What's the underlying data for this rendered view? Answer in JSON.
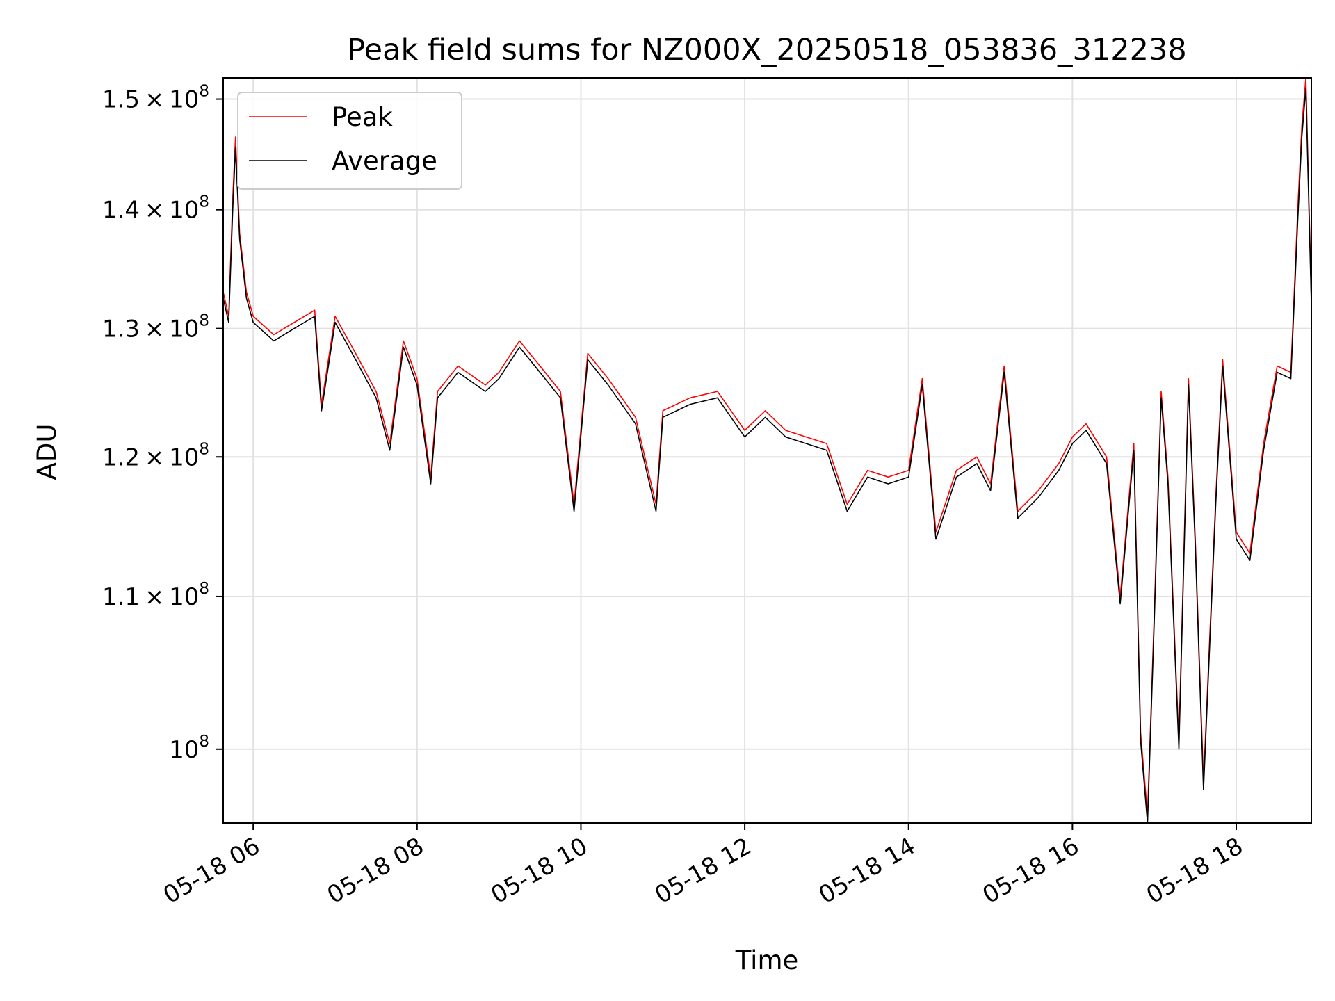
{
  "chart_data": {
    "type": "line",
    "title": "Peak field sums for NZ000X_20250518_053836_312238",
    "xlabel": "Time",
    "ylabel": "ADU",
    "x_unit": "hours (2025-05-18, local clock)",
    "xlim": [
      "2025-05-18 05:38",
      "2025-05-18 18:55"
    ],
    "ylim": [
      95500000,
      152000000
    ],
    "y_scale": "log",
    "grid": true,
    "legend_position": "top-left",
    "x_ticks": [
      {
        "value": "2025-05-18 06:00",
        "label": "05-18 06"
      },
      {
        "value": "2025-05-18 08:00",
        "label": "05-18 08"
      },
      {
        "value": "2025-05-18 10:00",
        "label": "05-18 10"
      },
      {
        "value": "2025-05-18 12:00",
        "label": "05-18 12"
      },
      {
        "value": "2025-05-18 14:00",
        "label": "05-18 14"
      },
      {
        "value": "2025-05-18 16:00",
        "label": "05-18 16"
      },
      {
        "value": "2025-05-18 18:00",
        "label": "05-18 18"
      }
    ],
    "y_ticks": [
      {
        "value": 100000000,
        "mantissa": "",
        "base": "10",
        "exp": "8"
      },
      {
        "value": 110000000,
        "mantissa": "1.1",
        "base": "10",
        "exp": "8"
      },
      {
        "value": 120000000,
        "mantissa": "1.2",
        "base": "10",
        "exp": "8"
      },
      {
        "value": 130000000,
        "mantissa": "1.3",
        "base": "10",
        "exp": "8"
      },
      {
        "value": 140000000,
        "mantissa": "1.4",
        "base": "10",
        "exp": "8"
      },
      {
        "value": 150000000,
        "mantissa": "1.5",
        "base": "10",
        "exp": "8"
      }
    ],
    "series": [
      {
        "name": "Peak",
        "color": "#ff0000",
        "points": [
          [
            "2025-05-18 05:38",
            133000000
          ],
          [
            "2025-05-18 05:42",
            131000000
          ],
          [
            "2025-05-18 05:45",
            141000000
          ],
          [
            "2025-05-18 05:47",
            146500000
          ],
          [
            "2025-05-18 05:50",
            138000000
          ],
          [
            "2025-05-18 05:55",
            133000000
          ],
          [
            "2025-05-18 06:00",
            131000000
          ],
          [
            "2025-05-18 06:15",
            129500000
          ],
          [
            "2025-05-18 06:30",
            130500000
          ],
          [
            "2025-05-18 06:45",
            131500000
          ],
          [
            "2025-05-18 06:50",
            124000000
          ],
          [
            "2025-05-18 07:00",
            131000000
          ],
          [
            "2025-05-18 07:15",
            128000000
          ],
          [
            "2025-05-18 07:30",
            125000000
          ],
          [
            "2025-05-18 07:40",
            121000000
          ],
          [
            "2025-05-18 07:50",
            129000000
          ],
          [
            "2025-05-18 08:00",
            126000000
          ],
          [
            "2025-05-18 08:10",
            118500000
          ],
          [
            "2025-05-18 08:15",
            125000000
          ],
          [
            "2025-05-18 08:30",
            127000000
          ],
          [
            "2025-05-18 08:50",
            125500000
          ],
          [
            "2025-05-18 09:00",
            126500000
          ],
          [
            "2025-05-18 09:15",
            129000000
          ],
          [
            "2025-05-18 09:30",
            127000000
          ],
          [
            "2025-05-18 09:45",
            125000000
          ],
          [
            "2025-05-18 09:55",
            116500000
          ],
          [
            "2025-05-18 10:05",
            128000000
          ],
          [
            "2025-05-18 10:20",
            126000000
          ],
          [
            "2025-05-18 10:40",
            123000000
          ],
          [
            "2025-05-18 10:55",
            116500000
          ],
          [
            "2025-05-18 11:00",
            123500000
          ],
          [
            "2025-05-18 11:20",
            124500000
          ],
          [
            "2025-05-18 11:40",
            125000000
          ],
          [
            "2025-05-18 12:00",
            122000000
          ],
          [
            "2025-05-18 12:15",
            123500000
          ],
          [
            "2025-05-18 12:30",
            122000000
          ],
          [
            "2025-05-18 12:45",
            121500000
          ],
          [
            "2025-05-18 13:00",
            121000000
          ],
          [
            "2025-05-18 13:15",
            116500000
          ],
          [
            "2025-05-18 13:30",
            119000000
          ],
          [
            "2025-05-18 13:45",
            118500000
          ],
          [
            "2025-05-18 14:00",
            119000000
          ],
          [
            "2025-05-18 14:10",
            126000000
          ],
          [
            "2025-05-18 14:20",
            114500000
          ],
          [
            "2025-05-18 14:35",
            119000000
          ],
          [
            "2025-05-18 14:50",
            120000000
          ],
          [
            "2025-05-18 15:00",
            118000000
          ],
          [
            "2025-05-18 15:10",
            127000000
          ],
          [
            "2025-05-18 15:20",
            116000000
          ],
          [
            "2025-05-18 15:35",
            117500000
          ],
          [
            "2025-05-18 15:50",
            119500000
          ],
          [
            "2025-05-18 16:00",
            121500000
          ],
          [
            "2025-05-18 16:10",
            122500000
          ],
          [
            "2025-05-18 16:25",
            120000000
          ],
          [
            "2025-05-18 16:35",
            110000000
          ],
          [
            "2025-05-18 16:45",
            121000000
          ],
          [
            "2025-05-18 16:50",
            101000000
          ],
          [
            "2025-05-18 16:55",
            96000000
          ],
          [
            "2025-05-18 17:00",
            109000000
          ],
          [
            "2025-05-18 17:05",
            125000000
          ],
          [
            "2025-05-18 17:10",
            118500000
          ],
          [
            "2025-05-18 17:18",
            100500000
          ],
          [
            "2025-05-18 17:25",
            126000000
          ],
          [
            "2025-05-18 17:30",
            114000000
          ],
          [
            "2025-05-18 17:36",
            98000000
          ],
          [
            "2025-05-18 17:45",
            117000000
          ],
          [
            "2025-05-18 17:50",
            127500000
          ],
          [
            "2025-05-18 18:00",
            114500000
          ],
          [
            "2025-05-18 18:10",
            113000000
          ],
          [
            "2025-05-18 18:20",
            121000000
          ],
          [
            "2025-05-18 18:30",
            127000000
          ],
          [
            "2025-05-18 18:40",
            126500000
          ],
          [
            "2025-05-18 18:45",
            140000000
          ],
          [
            "2025-05-18 18:48",
            147500000
          ],
          [
            "2025-05-18 18:51",
            152000000
          ],
          [
            "2025-05-18 18:55",
            132500000
          ]
        ]
      },
      {
        "name": "Average",
        "color": "#000000",
        "points": [
          [
            "2025-05-18 05:38",
            132500000
          ],
          [
            "2025-05-18 05:42",
            130500000
          ],
          [
            "2025-05-18 05:45",
            140000000
          ],
          [
            "2025-05-18 05:47",
            145500000
          ],
          [
            "2025-05-18 05:50",
            137500000
          ],
          [
            "2025-05-18 05:55",
            132500000
          ],
          [
            "2025-05-18 06:00",
            130500000
          ],
          [
            "2025-05-18 06:15",
            129000000
          ],
          [
            "2025-05-18 06:30",
            130000000
          ],
          [
            "2025-05-18 06:45",
            131000000
          ],
          [
            "2025-05-18 06:50",
            123500000
          ],
          [
            "2025-05-18 07:00",
            130500000
          ],
          [
            "2025-05-18 07:15",
            127500000
          ],
          [
            "2025-05-18 07:30",
            124500000
          ],
          [
            "2025-05-18 07:40",
            120500000
          ],
          [
            "2025-05-18 07:50",
            128500000
          ],
          [
            "2025-05-18 08:00",
            125500000
          ],
          [
            "2025-05-18 08:10",
            118000000
          ],
          [
            "2025-05-18 08:15",
            124500000
          ],
          [
            "2025-05-18 08:30",
            126500000
          ],
          [
            "2025-05-18 08:50",
            125000000
          ],
          [
            "2025-05-18 09:00",
            126000000
          ],
          [
            "2025-05-18 09:15",
            128500000
          ],
          [
            "2025-05-18 09:30",
            126500000
          ],
          [
            "2025-05-18 09:45",
            124500000
          ],
          [
            "2025-05-18 09:55",
            116000000
          ],
          [
            "2025-05-18 10:05",
            127500000
          ],
          [
            "2025-05-18 10:20",
            125500000
          ],
          [
            "2025-05-18 10:40",
            122500000
          ],
          [
            "2025-05-18 10:55",
            116000000
          ],
          [
            "2025-05-18 11:00",
            123000000
          ],
          [
            "2025-05-18 11:20",
            124000000
          ],
          [
            "2025-05-18 11:40",
            124500000
          ],
          [
            "2025-05-18 12:00",
            121500000
          ],
          [
            "2025-05-18 12:15",
            123000000
          ],
          [
            "2025-05-18 12:30",
            121500000
          ],
          [
            "2025-05-18 12:45",
            121000000
          ],
          [
            "2025-05-18 13:00",
            120500000
          ],
          [
            "2025-05-18 13:15",
            116000000
          ],
          [
            "2025-05-18 13:30",
            118500000
          ],
          [
            "2025-05-18 13:45",
            118000000
          ],
          [
            "2025-05-18 14:00",
            118500000
          ],
          [
            "2025-05-18 14:10",
            125500000
          ],
          [
            "2025-05-18 14:20",
            114000000
          ],
          [
            "2025-05-18 14:35",
            118500000
          ],
          [
            "2025-05-18 14:50",
            119500000
          ],
          [
            "2025-05-18 15:00",
            117500000
          ],
          [
            "2025-05-18 15:10",
            126500000
          ],
          [
            "2025-05-18 15:20",
            115500000
          ],
          [
            "2025-05-18 15:35",
            117000000
          ],
          [
            "2025-05-18 15:50",
            119000000
          ],
          [
            "2025-05-18 16:00",
            121000000
          ],
          [
            "2025-05-18 16:10",
            122000000
          ],
          [
            "2025-05-18 16:25",
            119500000
          ],
          [
            "2025-05-18 16:35",
            109500000
          ],
          [
            "2025-05-18 16:45",
            120500000
          ],
          [
            "2025-05-18 16:50",
            100500000
          ],
          [
            "2025-05-18 16:55",
            95500000
          ],
          [
            "2025-05-18 17:00",
            108500000
          ],
          [
            "2025-05-18 17:05",
            124500000
          ],
          [
            "2025-05-18 17:10",
            118000000
          ],
          [
            "2025-05-18 17:18",
            100000000
          ],
          [
            "2025-05-18 17:25",
            125500000
          ],
          [
            "2025-05-18 17:30",
            113500000
          ],
          [
            "2025-05-18 17:36",
            97500000
          ],
          [
            "2025-05-18 17:45",
            116500000
          ],
          [
            "2025-05-18 17:50",
            127000000
          ],
          [
            "2025-05-18 18:00",
            114000000
          ],
          [
            "2025-05-18 18:10",
            112500000
          ],
          [
            "2025-05-18 18:20",
            120500000
          ],
          [
            "2025-05-18 18:30",
            126500000
          ],
          [
            "2025-05-18 18:40",
            126000000
          ],
          [
            "2025-05-18 18:45",
            139000000
          ],
          [
            "2025-05-18 18:48",
            146500000
          ],
          [
            "2025-05-18 18:51",
            151000000
          ],
          [
            "2025-05-18 18:55",
            132000000
          ]
        ]
      }
    ]
  }
}
